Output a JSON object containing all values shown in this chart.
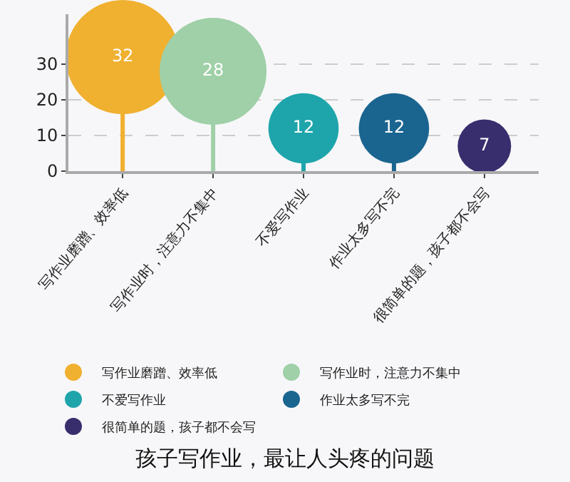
{
  "chart_data": {
    "type": "lollipop",
    "title": "孩子写作业，最让人头疼的问题",
    "categories": [
      "写作业磨蹭、效率低",
      "写作业时，注意力不集中",
      "不爱写作业",
      "作业太多写不完",
      "很简单的题，孩子都不会写"
    ],
    "series": [
      {
        "name": "写作业磨蹭、效率低",
        "color": "#f0b030",
        "values": [
          32,
          null,
          null,
          null,
          null
        ],
        "sizes": [
          1,
          null,
          null,
          null,
          null
        ]
      },
      {
        "name": "写作业时，注意力不集中",
        "color": "#9fd0a8",
        "values": [
          null,
          28,
          null,
          null,
          null
        ],
        "sizes": [
          null,
          0.88,
          null,
          null,
          null
        ]
      },
      {
        "name": "不爱写作业",
        "color": "#1ea5ab",
        "values": [
          null,
          null,
          12,
          null,
          null
        ],
        "sizes": [
          null,
          null,
          0.38,
          null,
          null
        ]
      },
      {
        "name": "作业太多写不完",
        "color": "#1a6590",
        "values": [
          null,
          null,
          null,
          12,
          null
        ],
        "sizes": [
          null,
          null,
          null,
          0.38,
          null
        ]
      },
      {
        "name": "很简单的题，孩子都不会写",
        "color": "#382e6e",
        "values": [
          null,
          null,
          null,
          null,
          7
        ],
        "sizes": [
          null,
          null,
          null,
          null,
          0.22
        ]
      }
    ],
    "ylim": [
      0,
      44
    ],
    "yticks": [
      0,
      10,
      20,
      30
    ],
    "grid": "y",
    "legend": "bottom",
    "data_labels": true
  }
}
